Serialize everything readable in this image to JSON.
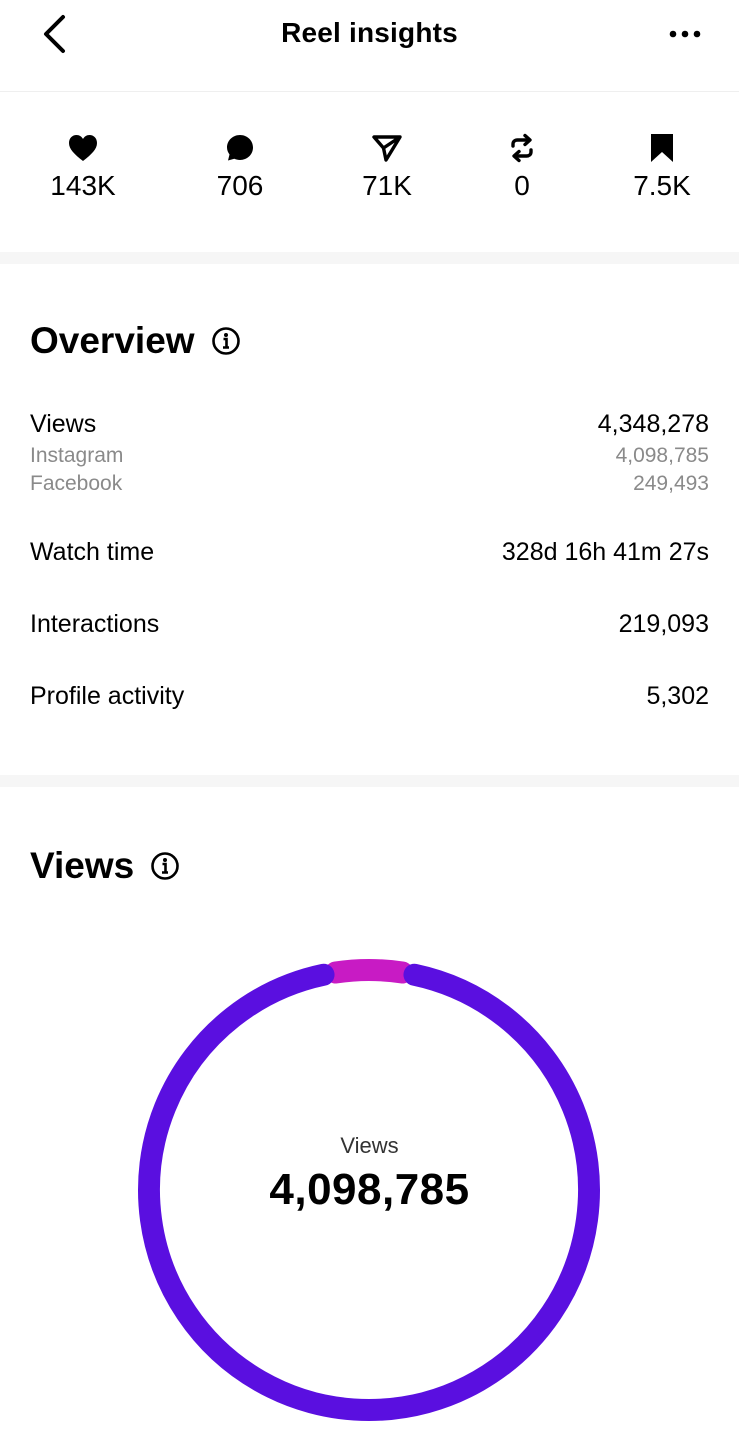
{
  "header": {
    "title": "Reel insights",
    "back_icon": "chevron-left-icon",
    "more_icon": "more-horizontal-icon"
  },
  "metrics": [
    {
      "icon": "heart-icon",
      "value": "143K"
    },
    {
      "icon": "comment-icon",
      "value": "706"
    },
    {
      "icon": "share-icon",
      "value": "71K"
    },
    {
      "icon": "repost-icon",
      "value": "0"
    },
    {
      "icon": "bookmark-icon",
      "value": "7.5K"
    }
  ],
  "overview": {
    "title": "Overview",
    "rows": {
      "views": {
        "label": "Views",
        "value": "4,348,278"
      },
      "instagram": {
        "label": "Instagram",
        "value": "4,098,785"
      },
      "facebook": {
        "label": "Facebook",
        "value": "249,493"
      },
      "watch_time": {
        "label": "Watch time",
        "value": "328d 16h 41m 27s"
      },
      "interactions": {
        "label": "Interactions",
        "value": "219,093"
      },
      "profile_activity": {
        "label": "Profile activity",
        "value": "5,302"
      }
    }
  },
  "views_section": {
    "title": "Views",
    "center_label": "Views",
    "center_value": "4,098,785"
  },
  "chart_data": {
    "type": "pie",
    "title": "",
    "series": [
      {
        "value": 4098785,
        "color": "#5a0fe0"
      },
      {
        "value": 249493,
        "color": "#c81bc4"
      }
    ]
  },
  "colors": {
    "primary_ring": "#5a0fe0",
    "secondary_ring": "#c81bc4",
    "subtext": "#8a8a8a",
    "divider": "#f6f6f6"
  }
}
